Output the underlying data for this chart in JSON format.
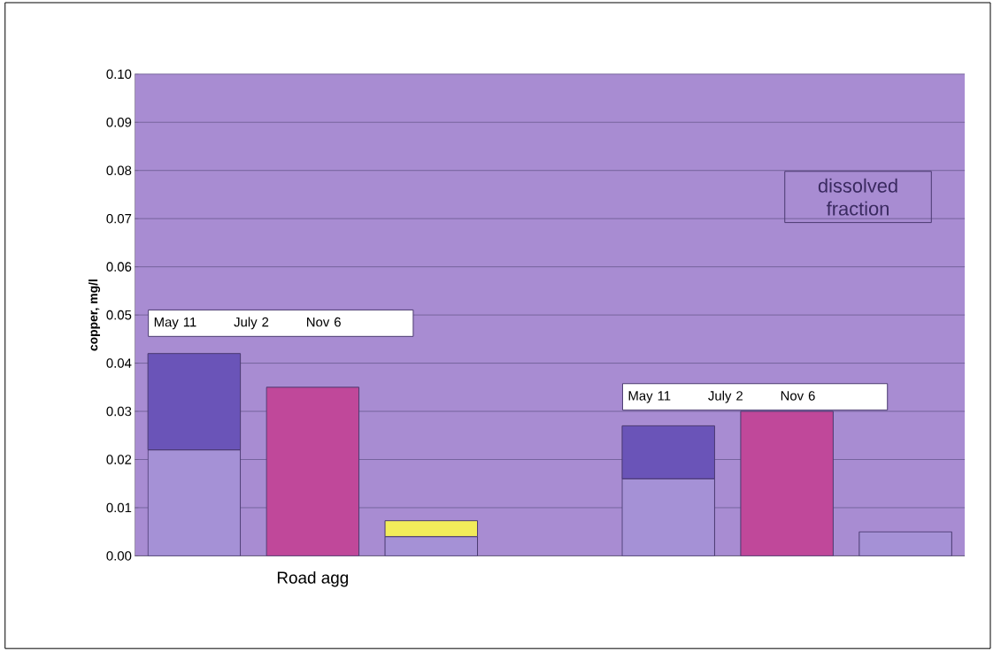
{
  "chart_data": {
    "type": "bar",
    "stacked": true,
    "ylabel": "copper, mg/l",
    "categories": [
      null,
      "Road agg",
      null,
      null,
      null,
      null,
      null
    ],
    "series": [
      {
        "color": "#a591d6",
        "values": [
          0.022,
          null,
          0.004,
          null,
          0.016,
          null,
          0.005
        ]
      },
      {
        "colors": [
          "#6a54b8",
          "#c0489a",
          "#f2ec5a",
          "#6a54b8",
          "#6a54b8",
          "#c0489a",
          "#f2ec5a"
        ],
        "values": [
          0.02,
          0.035,
          0.0033,
          null,
          0.011,
          0.03,
          null
        ]
      }
    ],
    "ylim": [
      0,
      0.1
    ],
    "yticks": [
      {
        "value": 0,
        "label": "0.00"
      },
      {
        "value": 0.01,
        "label": "0.01"
      },
      {
        "value": 0.02,
        "label": "0.02"
      },
      {
        "value": 0.03,
        "label": "0.03"
      },
      {
        "value": 0.04,
        "label": "0.04"
      },
      {
        "value": 0.05,
        "label": "0.05"
      },
      {
        "value": 0.06,
        "label": "0.06"
      },
      {
        "value": 0.07,
        "label": "0.07"
      },
      {
        "value": 0.08,
        "label": "0.08"
      },
      {
        "value": 0.09,
        "label": "0.09"
      },
      {
        "value": 0.1,
        "label": "0.10"
      }
    ],
    "grid": "y",
    "annotations": [
      "May 11",
      "July 2",
      "Nov 6",
      "May 11",
      "July 2",
      "Nov 6",
      "dissolved fraction"
    ]
  }
}
